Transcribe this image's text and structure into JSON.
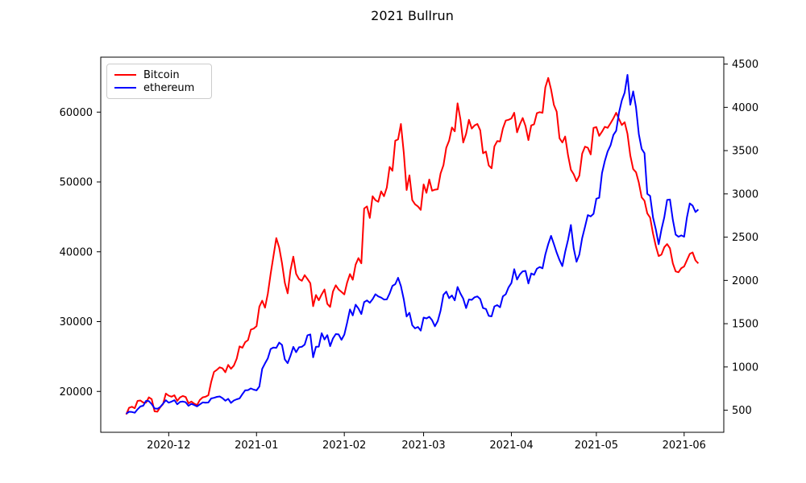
{
  "title": "2021 Bullrun",
  "legend": {
    "items": [
      {
        "label": "Bitcoin",
        "color": "#ff0000"
      },
      {
        "label": "ethereum",
        "color": "#0000ff"
      }
    ]
  },
  "chart_data": {
    "type": "line",
    "title": "2021 Bullrun",
    "background": "#ffffff",
    "grid": false,
    "legend_position": "upper left",
    "line_width": 2,
    "x_axis": {
      "start_date": "2020-11-16",
      "freq": "daily",
      "lim": [
        "2020-11-07",
        "2021-06-15"
      ],
      "ticks": [
        {
          "date": "2020-12-01",
          "label": "2020-12"
        },
        {
          "date": "2021-01-01",
          "label": "2021-01"
        },
        {
          "date": "2021-02-01",
          "label": "2021-02"
        },
        {
          "date": "2021-03-01",
          "label": "2021-03"
        },
        {
          "date": "2021-04-01",
          "label": "2021-04"
        },
        {
          "date": "2021-05-01",
          "label": "2021-05"
        },
        {
          "date": "2021-06-01",
          "label": "2021-06"
        }
      ]
    },
    "y_axis_left": {
      "lim": [
        14150,
        67870
      ],
      "ticks": [
        20000,
        30000,
        40000,
        50000,
        60000
      ]
    },
    "y_axis_right": {
      "lim": [
        245,
        4580
      ],
      "ticks": [
        500,
        1000,
        1500,
        2000,
        2500,
        3000,
        3500,
        4000,
        4500
      ]
    },
    "series": [
      {
        "name": "Bitcoin",
        "axis": "left",
        "color": "#ff0000",
        "values": [
          16700,
          17650,
          17800,
          17600,
          18650,
          18700,
          18400,
          18400,
          19150,
          18900,
          17150,
          17100,
          17750,
          18200,
          19700,
          19400,
          19250,
          19450,
          18650,
          19150,
          19350,
          19200,
          18300,
          18550,
          18250,
          18050,
          18800,
          19150,
          19250,
          19450,
          21350,
          22800,
          23100,
          23450,
          23300,
          22750,
          23800,
          23250,
          23700,
          24700,
          26450,
          26250,
          27050,
          27350,
          28850,
          29000,
          29350,
          32150,
          33000,
          32000,
          34000,
          36850,
          39400,
          41950,
          40600,
          38350,
          35550,
          34050,
          37350,
          39300,
          36850,
          36100,
          35850,
          36650,
          36100,
          35500,
          32200,
          33800,
          33050,
          33900,
          34600,
          32550,
          32100,
          34300,
          35200,
          34600,
          34250,
          33900,
          35600,
          36800,
          36000,
          38150,
          39100,
          38350,
          46200,
          46500,
          44850,
          47950,
          47400,
          47150,
          48650,
          47950,
          49200,
          52150,
          51600,
          55900,
          56100,
          58300,
          54150,
          48850,
          50950,
          47400,
          46800,
          46500,
          46000,
          49650,
          48450,
          50350,
          48750,
          48900,
          48950,
          51200,
          52400,
          54900,
          55900,
          57800,
          57250,
          61250,
          59000,
          55650,
          56900,
          58900,
          57650,
          58100,
          58300,
          57400,
          54100,
          54350,
          52350,
          51950,
          55100,
          55850,
          55800,
          57650,
          58800,
          58900,
          59100,
          59900,
          57100,
          58250,
          59150,
          58000,
          56000,
          58100,
          58250,
          59850,
          60000,
          59900,
          63550,
          64900,
          63250,
          61050,
          60050,
          56250,
          55650,
          56500,
          53800,
          51750,
          51100,
          50100,
          50900,
          54050,
          55050,
          54900,
          53950,
          57750,
          57850,
          56600,
          57200,
          57900,
          57750,
          58400,
          59100,
          59900,
          59000,
          58150,
          58550,
          56900,
          53800,
          51830,
          51400,
          49900,
          47800,
          47300,
          45500,
          44900,
          42600,
          40800,
          39380,
          39600,
          40650,
          41100,
          40500,
          38340,
          37180,
          37070,
          37650,
          37900,
          38800,
          39700,
          39900,
          38760,
          38340
        ]
      },
      {
        "name": "ethereum",
        "axis": "right",
        "color": "#0000ff",
        "values": [
          460,
          482,
          479,
          471,
          511,
          544,
          552,
          608,
          605,
          571,
          520,
          517,
          537,
          576,
          615,
          587,
          599,
          616,
          569,
          597,
          600,
          592,
          551,
          573,
          560,
          545,
          568,
          590,
          586,
          589,
          636,
          643,
          654,
          659,
          639,
          610,
          632,
          585,
          612,
          626,
          637,
          685,
          730,
          732,
          752,
          738,
          730,
          774,
          978,
          1041,
          1100,
          1208,
          1225,
          1221,
          1281,
          1254,
          1087,
          1044,
          1130,
          1232,
          1171,
          1227,
          1233,
          1258,
          1365,
          1376,
          1111,
          1233,
          1235,
          1390,
          1318,
          1368,
          1240,
          1330,
          1380,
          1376,
          1314,
          1374,
          1512,
          1665,
          1596,
          1719,
          1676,
          1612,
          1750,
          1769,
          1742,
          1784,
          1840,
          1815,
          1801,
          1779,
          1781,
          1849,
          1937,
          1957,
          2030,
          1935,
          1780,
          1583,
          1626,
          1482,
          1446,
          1463,
          1420,
          1571,
          1560,
          1580,
          1540,
          1470,
          1530,
          1650,
          1834,
          1870,
          1795,
          1826,
          1770,
          1924,
          1850,
          1790,
          1680,
          1780,
          1775,
          1805,
          1815,
          1785,
          1680,
          1670,
          1590,
          1585,
          1700,
          1715,
          1690,
          1815,
          1840,
          1920,
          1970,
          2130,
          2010,
          2070,
          2105,
          2110,
          1965,
          2080,
          2065,
          2135,
          2155,
          2140,
          2300,
          2420,
          2515,
          2420,
          2320,
          2235,
          2165,
          2330,
          2470,
          2640,
          2370,
          2215,
          2300,
          2490,
          2620,
          2755,
          2740,
          2770,
          2945,
          2955,
          3240,
          3380,
          3490,
          3560,
          3680,
          3730,
          3940,
          4080,
          4170,
          4375,
          4030,
          4185,
          4000,
          3690,
          3520,
          3470,
          3000,
          2976,
          2728,
          2588,
          2418,
          2590,
          2730,
          2930,
          2935,
          2700,
          2530,
          2505,
          2520,
          2505,
          2730,
          2890,
          2865,
          2790,
          2820
        ]
      }
    ]
  }
}
